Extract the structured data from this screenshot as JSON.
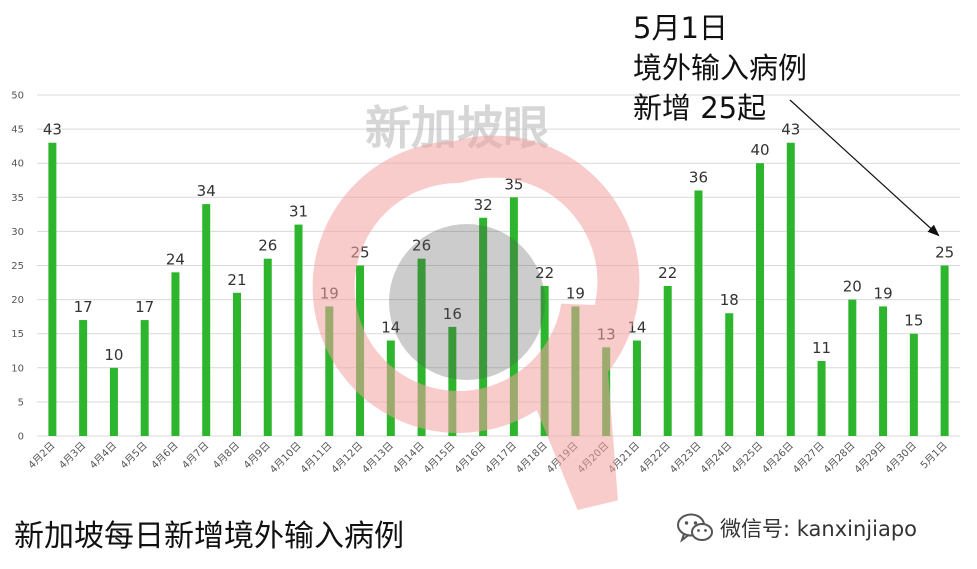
{
  "chart_data": {
    "type": "bar",
    "title": "新加坡每日新增境外输入病例",
    "xlabel": "",
    "ylabel": "",
    "ylim": [
      0,
      50
    ],
    "yticks": [
      0,
      5,
      10,
      15,
      20,
      25,
      30,
      35,
      40,
      45,
      50
    ],
    "grid": true,
    "categories": [
      "4月2日",
      "4月3日",
      "4月4日",
      "4月5日",
      "4月6日",
      "4月7日",
      "4月8日",
      "4月9日",
      "4月10日",
      "4月11日",
      "4月12日",
      "4月13日",
      "4月14日",
      "4月15日",
      "4月16日",
      "4月17日",
      "4月18日",
      "4月19日",
      "4月20日",
      "4月21日",
      "4月22日",
      "4月23日",
      "4月24日",
      "4月25日",
      "4月26日",
      "4月27日",
      "4月28日",
      "4月29日",
      "4月30日",
      "5月1日"
    ],
    "values": [
      43,
      17,
      10,
      17,
      24,
      34,
      21,
      26,
      31,
      19,
      25,
      14,
      26,
      16,
      32,
      35,
      22,
      19,
      13,
      14,
      22,
      36,
      18,
      40,
      43,
      11,
      20,
      19,
      15,
      25
    ],
    "bar_color": "#2db52d",
    "annotation": {
      "lines": [
        "5月1日",
        "境外输入病例",
        "新增 25起"
      ],
      "points_to": "5月1日"
    }
  },
  "watermark": {
    "text": "新加坡眼",
    "colors": {
      "ring": "#f4a3a3",
      "center": "#555555",
      "text": "#bbbbbb"
    }
  },
  "footer": {
    "wechat_label": "微信号: kanxinjiapo",
    "icon": "wechat-icon"
  }
}
